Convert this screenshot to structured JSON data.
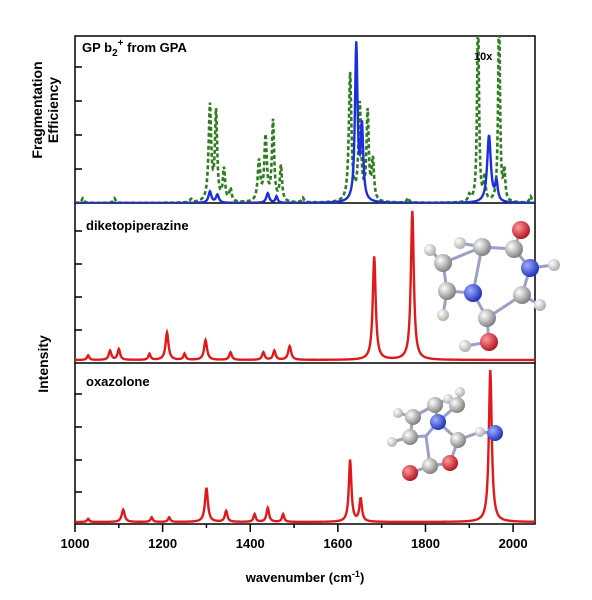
{
  "figure": {
    "panels": [
      {
        "id": "top",
        "label": "GP b",
        "label_sub": "2",
        "label_sup": "+",
        "label_rest": " from GPA",
        "note": "10x"
      },
      {
        "id": "middle",
        "label": "diketopiperazine"
      },
      {
        "id": "bottom",
        "label": "oxazolone"
      }
    ],
    "y_title_top_line1": "Fragmentation",
    "y_title_top_line2": "Efficiency",
    "y_title_lower": "Intensity",
    "x_title_main": "wavenumber (cm",
    "x_title_sup": "-1",
    "x_title_end": ")",
    "colors": {
      "experiment": "#1c2fe0",
      "experiment_10x": "#2e7d20",
      "theory": "#e01a1a",
      "axis": "#000000"
    },
    "icons": [
      "diketopiperazine-molecule-icon",
      "oxazolone-molecule-icon"
    ]
  },
  "chart_data": [
    {
      "type": "line",
      "panel": "top",
      "xlim": [
        1000,
        2050
      ],
      "ylim": [
        0,
        1.0
      ],
      "xlabel": "",
      "ylabel": "Fragmentation Efficiency",
      "grid": false,
      "annotations": [
        "GP b2+ from GPA",
        "10x"
      ],
      "series": [
        {
          "style": "solid",
          "peaks": [
            {
              "x": 1308,
              "height": 0.07,
              "width": 8
            },
            {
              "x": 1325,
              "height": 0.05,
              "width": 8
            },
            {
              "x": 1440,
              "height": 0.06,
              "width": 8
            },
            {
              "x": 1460,
              "height": 0.04,
              "width": 6
            },
            {
              "x": 1642,
              "height": 0.98,
              "width": 7
            },
            {
              "x": 1655,
              "height": 0.45,
              "width": 7
            },
            {
              "x": 1945,
              "height": 0.42,
              "width": 10
            },
            {
              "x": 1962,
              "height": 0.12,
              "width": 7
            }
          ]
        },
        {
          "style": "dashed",
          "peaks": [
            {
              "x": 1018,
              "height": 0.03,
              "width": 6
            },
            {
              "x": 1090,
              "height": 0.03,
              "width": 6
            },
            {
              "x": 1265,
              "height": 0.02,
              "width": 6
            },
            {
              "x": 1308,
              "height": 0.6,
              "width": 7
            },
            {
              "x": 1322,
              "height": 0.55,
              "width": 6
            },
            {
              "x": 1340,
              "height": 0.2,
              "width": 6
            },
            {
              "x": 1355,
              "height": 0.08,
              "width": 6
            },
            {
              "x": 1420,
              "height": 0.25,
              "width": 7
            },
            {
              "x": 1435,
              "height": 0.4,
              "width": 7
            },
            {
              "x": 1452,
              "height": 0.5,
              "width": 6
            },
            {
              "x": 1470,
              "height": 0.22,
              "width": 6
            },
            {
              "x": 1520,
              "height": 0.03,
              "width": 6
            },
            {
              "x": 1628,
              "height": 0.8,
              "width": 7
            },
            {
              "x": 1650,
              "height": 0.6,
              "width": 7
            },
            {
              "x": 1668,
              "height": 0.55,
              "width": 6
            },
            {
              "x": 1680,
              "height": 0.25,
              "width": 6
            },
            {
              "x": 1760,
              "height": 0.03,
              "width": 6
            },
            {
              "x": 1900,
              "height": 0.04,
              "width": 6
            },
            {
              "x": 1920,
              "height": 1.2,
              "width": 5
            },
            {
              "x": 1935,
              "height": 0.15,
              "width": 5
            },
            {
              "x": 1968,
              "height": 1.2,
              "width": 5
            },
            {
              "x": 1980,
              "height": 0.18,
              "width": 5
            },
            {
              "x": 2040,
              "height": 0.04,
              "width": 6
            }
          ]
        }
      ]
    },
    {
      "type": "line",
      "panel": "middle",
      "xlim": [
        1000,
        2050
      ],
      "ylim": [
        0,
        1.0
      ],
      "ylabel": "Intensity",
      "grid": false,
      "annotations": [
        "diketopiperazine"
      ],
      "series": [
        {
          "style": "solid",
          "peaks": [
            {
              "x": 1030,
              "height": 0.03,
              "width": 6
            },
            {
              "x": 1080,
              "height": 0.06,
              "width": 7
            },
            {
              "x": 1100,
              "height": 0.07,
              "width": 7
            },
            {
              "x": 1170,
              "height": 0.04,
              "width": 6
            },
            {
              "x": 1210,
              "height": 0.18,
              "width": 8
            },
            {
              "x": 1250,
              "height": 0.04,
              "width": 6
            },
            {
              "x": 1298,
              "height": 0.13,
              "width": 8
            },
            {
              "x": 1355,
              "height": 0.05,
              "width": 7
            },
            {
              "x": 1430,
              "height": 0.05,
              "width": 7
            },
            {
              "x": 1455,
              "height": 0.06,
              "width": 7
            },
            {
              "x": 1490,
              "height": 0.09,
              "width": 8
            },
            {
              "x": 1683,
              "height": 0.68,
              "width": 8
            },
            {
              "x": 1770,
              "height": 0.98,
              "width": 8
            }
          ]
        }
      ]
    },
    {
      "type": "line",
      "panel": "bottom",
      "xlim": [
        1000,
        2050
      ],
      "ylim": [
        0,
        1.0
      ],
      "xlabel": "wavenumber (cm-1)",
      "ylabel": "Intensity",
      "xticks": [
        1000,
        1200,
        1400,
        1600,
        1800,
        2000
      ],
      "grid": false,
      "annotations": [
        "oxazolone"
      ],
      "series": [
        {
          "style": "solid",
          "peaks": [
            {
              "x": 1030,
              "height": 0.02,
              "width": 6
            },
            {
              "x": 1110,
              "height": 0.08,
              "width": 8
            },
            {
              "x": 1175,
              "height": 0.03,
              "width": 6
            },
            {
              "x": 1215,
              "height": 0.03,
              "width": 6
            },
            {
              "x": 1300,
              "height": 0.22,
              "width": 8
            },
            {
              "x": 1345,
              "height": 0.07,
              "width": 7
            },
            {
              "x": 1410,
              "height": 0.05,
              "width": 6
            },
            {
              "x": 1440,
              "height": 0.09,
              "width": 7
            },
            {
              "x": 1475,
              "height": 0.05,
              "width": 6
            },
            {
              "x": 1628,
              "height": 0.4,
              "width": 7
            },
            {
              "x": 1652,
              "height": 0.15,
              "width": 7
            },
            {
              "x": 1948,
              "height": 0.98,
              "width": 8
            }
          ]
        }
      ]
    }
  ]
}
